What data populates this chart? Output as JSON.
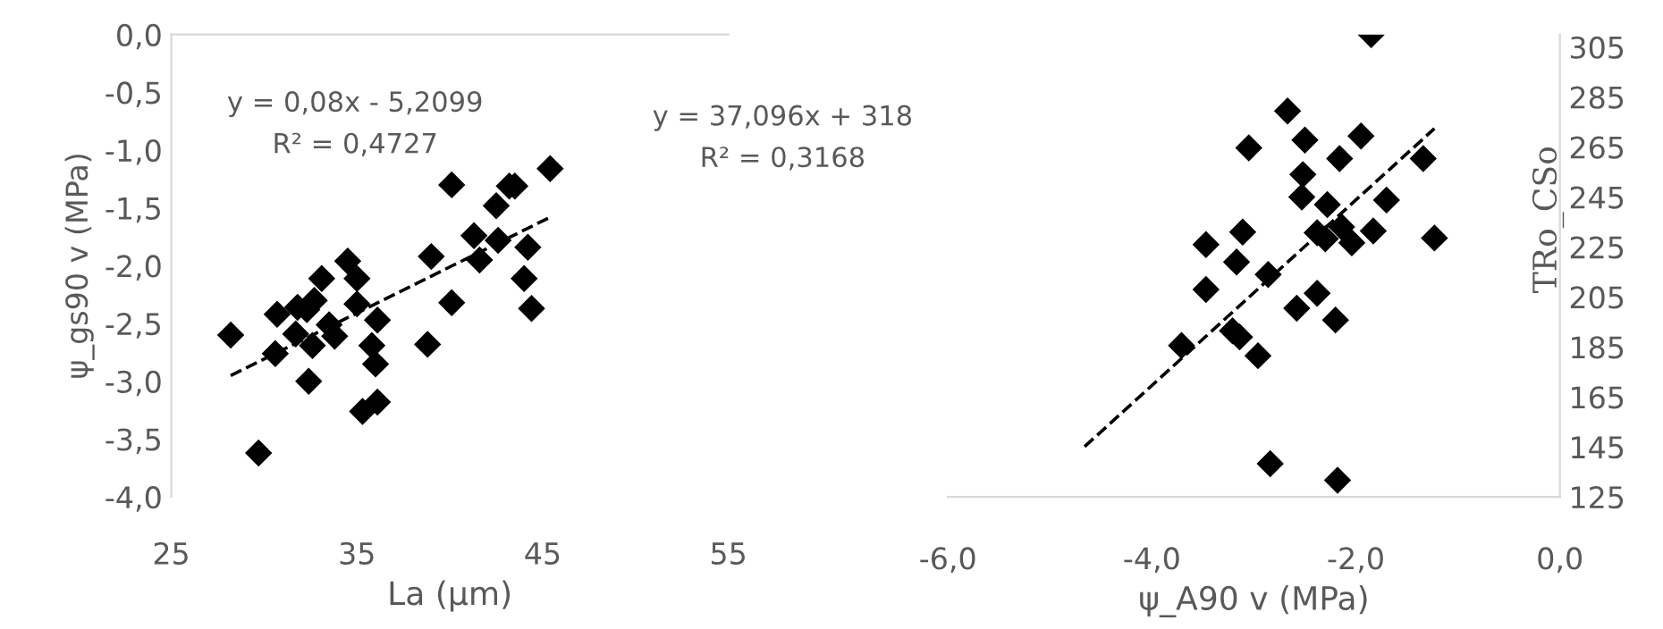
{
  "chart_data": [
    {
      "type": "scatter",
      "xlabel": "La (µm)",
      "ylabel": "ψ_gs90 v (MPa)",
      "xlim": [
        25,
        55
      ],
      "xticks": [
        25,
        35,
        45,
        55
      ],
      "ylim": [
        -4.0,
        0.0
      ],
      "yticks": [
        {
          "value": -4.0,
          "label": "-4,0"
        },
        {
          "value": -3.5,
          "label": "-3,5"
        },
        {
          "value": -3.0,
          "label": "-3,0"
        },
        {
          "value": -2.5,
          "label": "-2,5"
        },
        {
          "value": -2.0,
          "label": "-2,0"
        },
        {
          "value": -1.5,
          "label": "-1,5"
        },
        {
          "value": -1.0,
          "label": "-1,0"
        },
        {
          "value": -0.5,
          "label": "-0,5"
        },
        {
          "value": 0.0,
          "label": "0,0"
        }
      ],
      "grid": false,
      "legend": false,
      "marker": "diamond",
      "annotations": [
        "y = 0,08x - 5,2099",
        "R² = 0,4727"
      ],
      "series": [
        {
          "color": "#000000",
          "x": [
            28.2,
            29.7,
            30.6,
            30.7,
            31.7,
            31.8,
            32.3,
            32.4,
            32.6,
            32.7,
            33.1,
            33.5,
            33.8,
            34.5,
            35.0,
            35.0,
            35.3,
            35.8,
            36.0,
            36.1,
            36.1,
            38.8,
            39.0,
            40.1,
            40.1,
            41.3,
            41.6,
            42.5,
            42.6,
            43.2,
            43.5,
            44.2,
            44.0,
            44.4,
            45.4
          ],
          "values": [
            -2.6,
            -3.62,
            -2.76,
            -2.42,
            -2.59,
            -2.36,
            -2.38,
            -3.0,
            -2.69,
            -2.3,
            -2.11,
            -2.51,
            -2.61,
            -1.96,
            -2.11,
            -2.33,
            -3.26,
            -2.69,
            -2.85,
            -3.18,
            -2.47,
            -2.68,
            -1.92,
            -1.3,
            -2.32,
            -1.74,
            -1.95,
            -1.48,
            -1.78,
            -1.31,
            -1.31,
            -1.84,
            -2.11,
            -2.37,
            -1.16
          ]
        },
        {
          "type": "line",
          "color": "#000000",
          "line_style": "dashed",
          "marker": "none",
          "x": [
            28.2,
            45.4
          ],
          "values": [
            -2.95,
            -1.58
          ]
        }
      ]
    },
    {
      "type": "scatter",
      "xlabel": "ψ_A90 v (MPa)",
      "ylabel": "TRo_CSo",
      "xlim": [
        -6.0,
        0.0
      ],
      "xticks": [
        {
          "value": -6.0,
          "label": "-6,0"
        },
        {
          "value": -4.0,
          "label": "-4,0"
        },
        {
          "value": -2.0,
          "label": "-2,0"
        },
        {
          "value": 0.0,
          "label": "0,0"
        }
      ],
      "ylim": [
        125,
        310
      ],
      "yticks": [
        125,
        145,
        165,
        185,
        205,
        225,
        245,
        265,
        285,
        305
      ],
      "grid": false,
      "legend": false,
      "marker": "diamond",
      "annotations": [
        "y = 37,096x + 318",
        "R² = 0,3168"
      ],
      "series": [
        {
          "color": "#000000",
          "x": [
            -1.85,
            -3.71,
            -3.47,
            -3.47,
            -3.21,
            -3.14,
            -3.17,
            -3.11,
            -3.05,
            -2.96,
            -2.86,
            -2.84,
            -2.67,
            -2.58,
            -2.53,
            -2.52,
            -2.5,
            -2.38,
            -2.38,
            -2.3,
            -2.28,
            -2.2,
            -2.18,
            -2.16,
            -2.14,
            -2.04,
            -1.95,
            -1.83,
            -1.7,
            -1.34,
            -1.23
          ],
          "values": [
            310,
            185.6,
            226,
            208,
            191.5,
            189,
            219,
            231,
            264.7,
            181.5,
            214,
            138.3,
            279.4,
            200.5,
            245,
            254,
            267.8,
            230.7,
            206.5,
            228.3,
            242,
            195.8,
            131.7,
            260.4,
            233,
            226.7,
            269.4,
            231.4,
            243.8,
            260.4,
            228.6
          ]
        },
        {
          "type": "line",
          "color": "#000000",
          "line_style": "dashed",
          "marker": "none",
          "x": [
            -4.66,
            -1.23
          ],
          "values": [
            145.1,
            272.4
          ]
        }
      ]
    }
  ]
}
